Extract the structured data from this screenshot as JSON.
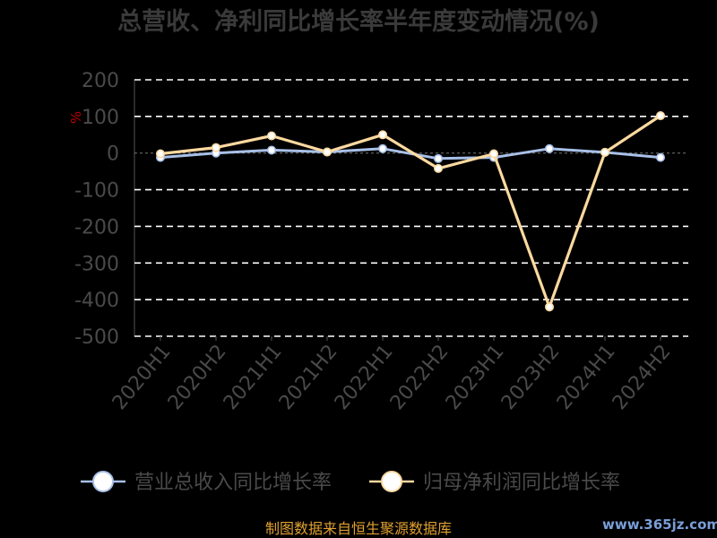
{
  "chart_data": {
    "type": "line",
    "title": "总营收、净利同比增长率半年度变动情况(%)",
    "ylabel": "%",
    "ylim": [
      -500,
      200
    ],
    "yticks": [
      200,
      100,
      0,
      -100,
      -200,
      -300,
      -400,
      -500
    ],
    "grid": true,
    "legend_position": "bottom",
    "categories": [
      "2020H1",
      "2020H2",
      "2021H1",
      "2021H2",
      "2022H1",
      "2022H2",
      "2023H1",
      "2023H2",
      "2024H1",
      "2024H2"
    ],
    "series": [
      {
        "name": "营业总收入同比增长率",
        "color": "#a8c0e8",
        "values": [
          -12,
          0,
          8,
          3,
          12,
          -15,
          -12,
          12,
          2,
          -12
        ]
      },
      {
        "name": "归母净利润同比增长率",
        "color": "#fcd9a0",
        "values": [
          -2,
          15,
          47,
          3,
          50,
          -42,
          -2,
          -420,
          2,
          102
        ]
      }
    ]
  },
  "footer": {
    "source": "制图数据来自恒生聚源数据库",
    "watermark": "www.365jz.com"
  }
}
